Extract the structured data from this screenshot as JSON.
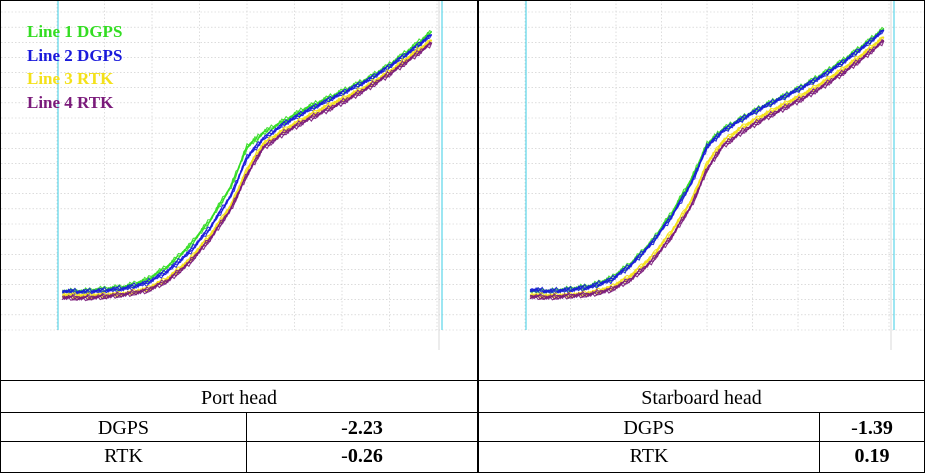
{
  "colors": {
    "line1": "#33dd22",
    "line2": "#1a1adb",
    "line3": "#f4e11a",
    "line4": "#7a1a7a",
    "marker": "#5ad6e8",
    "grid": "#c8c8c8"
  },
  "chart_data": [
    {
      "type": "line",
      "legend_placement": "top-left",
      "grid": true,
      "series": [
        {
          "name": "Line 1 DGPS",
          "color": "#33dd22",
          "x": [
            289.0,
            291.0,
            293.0,
            295.0,
            297.0,
            299.0,
            301.0,
            303.0,
            305.0,
            306.5,
            308.0,
            310.0,
            312.0,
            314.0,
            316.0,
            318.0,
            320.0,
            322.0,
            324.0
          ],
          "y": [
            14.99,
            14.99,
            14.96,
            14.93,
            14.84,
            14.66,
            14.4,
            14.05,
            13.6,
            13.08,
            12.9,
            12.74,
            12.58,
            12.45,
            12.32,
            12.18,
            12.0,
            11.79,
            11.56
          ]
        },
        {
          "name": "Line 2 DGPS",
          "color": "#1a1adb",
          "x": [
            289.0,
            291.0,
            293.0,
            295.0,
            297.0,
            299.0,
            301.0,
            303.0,
            305.0,
            306.5,
            308.0,
            310.0,
            312.0,
            314.0,
            316.0,
            318.0,
            320.0,
            322.0,
            324.0
          ],
          "y": [
            14.99,
            15.0,
            14.98,
            14.95,
            14.88,
            14.72,
            14.48,
            14.15,
            13.72,
            13.22,
            12.98,
            12.78,
            12.62,
            12.48,
            12.34,
            12.2,
            12.02,
            11.82,
            11.6
          ]
        },
        {
          "name": "Line 3 RTK",
          "color": "#f4e11a",
          "x": [
            289.0,
            291.0,
            293.0,
            295.0,
            297.0,
            299.0,
            301.0,
            303.0,
            305.0,
            306.5,
            308.0,
            310.0,
            312.0,
            314.0,
            316.0,
            318.0,
            320.0,
            322.0,
            324.0
          ],
          "y": [
            15.04,
            15.05,
            15.04,
            15.02,
            14.96,
            14.82,
            14.58,
            14.25,
            13.85,
            13.38,
            13.05,
            12.86,
            12.7,
            12.55,
            12.42,
            12.27,
            12.09,
            11.88,
            11.67
          ]
        },
        {
          "name": "Line 4 RTK",
          "color": "#7a1a7a",
          "x": [
            289.0,
            291.0,
            293.0,
            295.0,
            297.0,
            299.0,
            301.0,
            303.0,
            305.0,
            306.5,
            308.0,
            310.0,
            312.0,
            314.0,
            316.0,
            318.0,
            320.0,
            322.0,
            324.0
          ],
          "y": [
            15.07,
            15.08,
            15.06,
            15.03,
            14.98,
            14.85,
            14.62,
            14.3,
            13.9,
            13.45,
            13.1,
            12.9,
            12.74,
            12.6,
            12.46,
            12.3,
            12.12,
            11.92,
            11.71
          ]
        }
      ]
    },
    {
      "type": "line",
      "grid": true,
      "series": [
        {
          "color": "#33dd22",
          "x": [
            289.0,
            291.0,
            293.0,
            295.0,
            297.0,
            299.0,
            301.0,
            303.0,
            305.0,
            306.5,
            308.0,
            310.0,
            312.0,
            314.0,
            316.0,
            318.0,
            320.0,
            322.0,
            324.0
          ],
          "y": [
            14.98,
            14.99,
            14.96,
            14.92,
            14.82,
            14.62,
            14.34,
            13.96,
            13.5,
            13.05,
            12.86,
            12.7,
            12.55,
            12.42,
            12.28,
            12.12,
            11.94,
            11.74,
            11.52
          ]
        },
        {
          "color": "#1a1adb",
          "x": [
            289.0,
            291.0,
            293.0,
            295.0,
            297.0,
            299.0,
            301.0,
            303.0,
            305.0,
            306.5,
            308.0,
            310.0,
            312.0,
            314.0,
            316.0,
            318.0,
            320.0,
            322.0,
            324.0
          ],
          "y": [
            14.97,
            14.99,
            14.97,
            14.93,
            14.84,
            14.64,
            14.36,
            14.0,
            13.55,
            13.08,
            12.88,
            12.71,
            12.56,
            12.43,
            12.29,
            12.14,
            11.96,
            11.76,
            11.54
          ]
        },
        {
          "color": "#f4e11a",
          "x": [
            289.0,
            291.0,
            293.0,
            295.0,
            297.0,
            299.0,
            301.0,
            303.0,
            305.0,
            306.5,
            308.0,
            310.0,
            312.0,
            314.0,
            316.0,
            318.0,
            320.0,
            322.0,
            324.0
          ],
          "y": [
            15.04,
            15.05,
            15.04,
            15.01,
            14.94,
            14.78,
            14.54,
            14.2,
            13.78,
            13.3,
            13.02,
            12.82,
            12.67,
            12.53,
            12.39,
            12.23,
            12.05,
            11.85,
            11.63
          ]
        },
        {
          "color": "#7a1a7a",
          "x": [
            289.0,
            291.0,
            293.0,
            295.0,
            297.0,
            299.0,
            301.0,
            303.0,
            305.0,
            306.5,
            308.0,
            310.0,
            312.0,
            314.0,
            316.0,
            318.0,
            320.0,
            322.0,
            324.0
          ],
          "y": [
            15.06,
            15.07,
            15.05,
            15.03,
            14.97,
            14.83,
            14.6,
            14.27,
            13.85,
            13.38,
            13.08,
            12.88,
            12.72,
            12.58,
            12.44,
            12.28,
            12.1,
            11.9,
            11.68
          ]
        }
      ]
    }
  ],
  "table": {
    "left_caption": "Port head",
    "right_caption": "Starboard head",
    "left_rows": [
      {
        "label": "DGPS",
        "sign": "-",
        "value": "2.23"
      },
      {
        "label": "RTK",
        "sign": "-",
        "value": "0.26"
      }
    ],
    "right_rows": [
      {
        "label": "DGPS",
        "sign": "-",
        "value": "1.39"
      },
      {
        "label": "RTK",
        "sign": "",
        "value": "0.19"
      }
    ]
  }
}
